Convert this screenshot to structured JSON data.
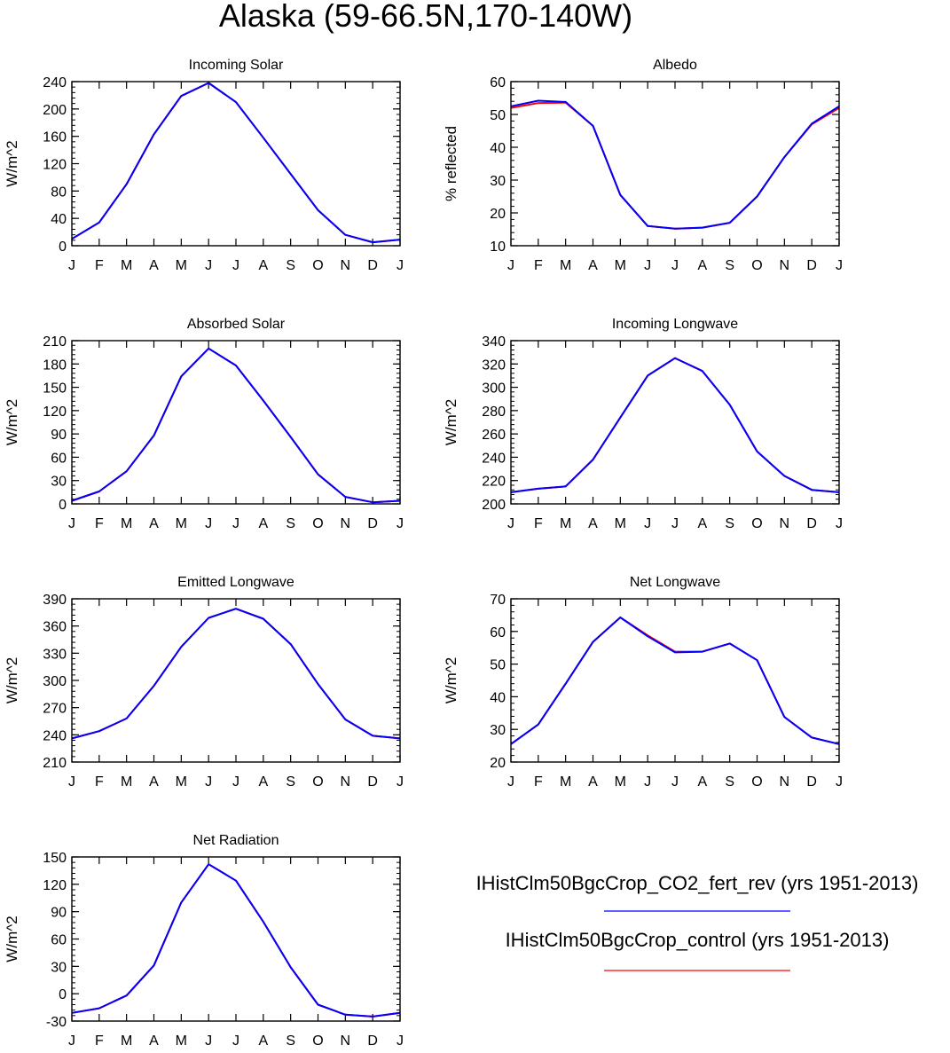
{
  "title": "Alaska (59-66.5N,170-140W)",
  "colors": {
    "series1": "#0000ff",
    "series2": "#ff0000"
  },
  "legend": [
    {
      "label": "IHistClm50BgcCrop_CO2_fert_rev (yrs 1951-2013)",
      "color": "#0000ff"
    },
    {
      "label": "IHistClm50BgcCrop_control (yrs 1951-2013)",
      "color": "#ff0000"
    }
  ],
  "chart_data": [
    {
      "type": "line",
      "title": "Incoming Solar",
      "ylabel": "W/m^2",
      "categories": [
        "J",
        "F",
        "M",
        "A",
        "M",
        "J",
        "J",
        "A",
        "S",
        "O",
        "N",
        "D",
        "J"
      ],
      "ylim": [
        0,
        240
      ],
      "yticks": [
        0,
        40,
        80,
        120,
        160,
        200,
        240
      ],
      "series": [
        {
          "name": "IHistClm50BgcCrop_CO2_fert_rev (yrs 1951-2013)",
          "color": "#0000ff",
          "values": [
            10,
            34,
            90,
            163,
            219,
            238,
            210,
            158,
            105,
            52,
            16,
            5,
            9
          ]
        },
        {
          "name": "IHistClm50BgcCrop_control (yrs 1951-2013)",
          "color": "#ff0000",
          "values": [
            10,
            34,
            90,
            163,
            219,
            238,
            210,
            158,
            105,
            52,
            16,
            5,
            9
          ]
        }
      ]
    },
    {
      "type": "line",
      "title": "Albedo",
      "ylabel": "% reflected",
      "categories": [
        "J",
        "F",
        "M",
        "A",
        "M",
        "J",
        "J",
        "A",
        "S",
        "O",
        "N",
        "D",
        "J"
      ],
      "ylim": [
        10,
        60
      ],
      "yticks": [
        10,
        20,
        30,
        40,
        50,
        60
      ],
      "series": [
        {
          "name": "IHistClm50BgcCrop_CO2_fert_rev (yrs 1951-2013)",
          "color": "#0000ff",
          "values": [
            52.5,
            54.2,
            53.8,
            46.5,
            25.5,
            16.0,
            15.2,
            15.5,
            17.0,
            25.0,
            37.0,
            47.2,
            52.5
          ]
        },
        {
          "name": "IHistClm50BgcCrop_control (yrs 1951-2013)",
          "color": "#ff0000",
          "values": [
            52.0,
            53.5,
            53.6,
            46.5,
            25.5,
            16.0,
            15.2,
            15.5,
            17.0,
            25.0,
            37.0,
            47.0,
            52.0
          ]
        }
      ]
    },
    {
      "type": "line",
      "title": "Absorbed Solar",
      "ylabel": "W/m^2",
      "categories": [
        "J",
        "F",
        "M",
        "A",
        "M",
        "J",
        "J",
        "A",
        "S",
        "O",
        "N",
        "D",
        "J"
      ],
      "ylim": [
        0,
        210
      ],
      "yticks": [
        0,
        30,
        60,
        90,
        120,
        150,
        180,
        210
      ],
      "series": [
        {
          "name": "IHistClm50BgcCrop_CO2_fert_rev (yrs 1951-2013)",
          "color": "#0000ff",
          "values": [
            4,
            16,
            42,
            88,
            164,
            200,
            178,
            133,
            86,
            38,
            9,
            2,
            4
          ]
        },
        {
          "name": "IHistClm50BgcCrop_control (yrs 1951-2013)",
          "color": "#ff0000",
          "values": [
            4,
            16,
            42,
            88,
            164,
            200,
            178,
            133,
            86,
            38,
            9,
            2,
            4
          ]
        }
      ]
    },
    {
      "type": "line",
      "title": "Incoming Longwave",
      "ylabel": "W/m^2",
      "categories": [
        "J",
        "F",
        "M",
        "A",
        "M",
        "J",
        "J",
        "A",
        "S",
        "O",
        "N",
        "D",
        "J"
      ],
      "ylim": [
        200,
        340
      ],
      "yticks": [
        200,
        220,
        240,
        260,
        280,
        300,
        320,
        340
      ],
      "series": [
        {
          "name": "IHistClm50BgcCrop_CO2_fert_rev (yrs 1951-2013)",
          "color": "#0000ff",
          "values": [
            210,
            213,
            215,
            238,
            274,
            310,
            325,
            314,
            285,
            245,
            224,
            212,
            210
          ]
        },
        {
          "name": "IHistClm50BgcCrop_control (yrs 1951-2013)",
          "color": "#ff0000",
          "values": [
            210,
            213,
            215,
            238,
            274,
            310,
            325,
            314,
            285,
            245,
            224,
            212,
            210
          ]
        }
      ]
    },
    {
      "type": "line",
      "title": "Emitted Longwave",
      "ylabel": "W/m^2",
      "categories": [
        "J",
        "F",
        "M",
        "A",
        "M",
        "J",
        "J",
        "A",
        "S",
        "O",
        "N",
        "D",
        "J"
      ],
      "ylim": [
        210,
        390
      ],
      "yticks": [
        210,
        240,
        270,
        300,
        330,
        360,
        390
      ],
      "series": [
        {
          "name": "IHistClm50BgcCrop_CO2_fert_rev (yrs 1951-2013)",
          "color": "#0000ff",
          "values": [
            236,
            244,
            258,
            294,
            337,
            369,
            379,
            368,
            340,
            296,
            257,
            239,
            236
          ]
        },
        {
          "name": "IHistClm50BgcCrop_control (yrs 1951-2013)",
          "color": "#ff0000",
          "values": [
            236,
            244,
            258,
            294,
            337,
            369,
            379,
            368,
            340,
            296,
            257,
            239,
            236
          ]
        }
      ]
    },
    {
      "type": "line",
      "title": "Net Longwave",
      "ylabel": "W/m^2",
      "categories": [
        "J",
        "F",
        "M",
        "A",
        "M",
        "J",
        "J",
        "A",
        "S",
        "O",
        "N",
        "D",
        "J"
      ],
      "ylim": [
        20,
        70
      ],
      "yticks": [
        20,
        30,
        40,
        50,
        60,
        70
      ],
      "series": [
        {
          "name": "IHistClm50BgcCrop_CO2_fert_rev (yrs 1951-2013)",
          "color": "#0000ff",
          "values": [
            25.5,
            31.5,
            44.0,
            56.8,
            64.3,
            58.5,
            53.6,
            53.8,
            56.3,
            51.2,
            33.8,
            27.5,
            25.5
          ]
        },
        {
          "name": "IHistClm50BgcCrop_control (yrs 1951-2013)",
          "color": "#ff0000",
          "values": [
            25.5,
            31.5,
            44.0,
            56.8,
            64.3,
            58.8,
            53.8,
            53.8,
            56.3,
            51.2,
            33.8,
            27.5,
            25.5
          ]
        }
      ]
    },
    {
      "type": "line",
      "title": "Net Radiation",
      "ylabel": "W/m^2",
      "categories": [
        "J",
        "F",
        "M",
        "A",
        "M",
        "J",
        "J",
        "A",
        "S",
        "O",
        "N",
        "D",
        "J"
      ],
      "ylim": [
        -30,
        150
      ],
      "yticks": [
        -30,
        0,
        30,
        60,
        90,
        120,
        150
      ],
      "series": [
        {
          "name": "IHistClm50BgcCrop_CO2_fert_rev (yrs 1951-2013)",
          "color": "#0000ff",
          "values": [
            -21,
            -16,
            -2,
            31,
            100,
            142,
            124,
            79,
            29,
            -12,
            -23,
            -25,
            -21
          ]
        },
        {
          "name": "IHistClm50BgcCrop_control (yrs 1951-2013)",
          "color": "#ff0000",
          "values": [
            -21,
            -16,
            -2,
            31,
            100,
            142,
            124,
            79,
            29,
            -12,
            -23,
            -25,
            -21
          ]
        }
      ]
    }
  ]
}
